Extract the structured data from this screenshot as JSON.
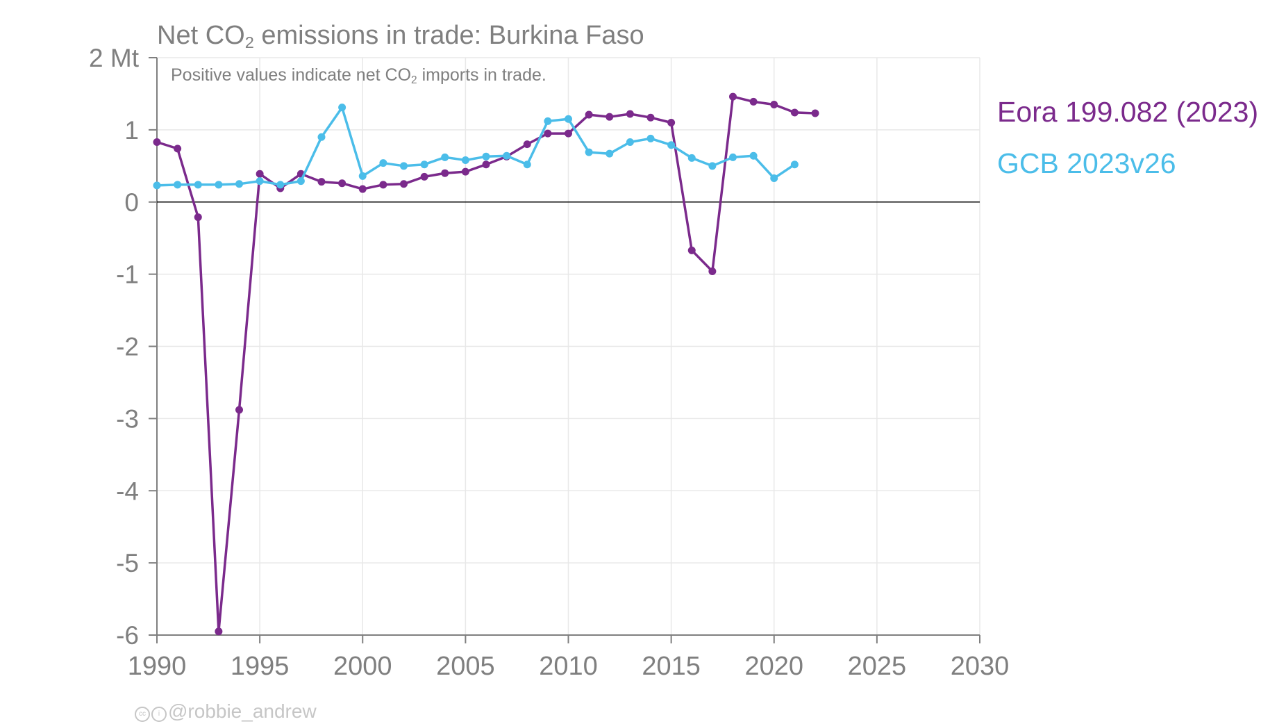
{
  "chart_data": {
    "type": "line",
    "title": {
      "prefix": "Net CO",
      "sub": "2",
      "suffix": " emissions in trade: Burkina Faso"
    },
    "subtitle": {
      "prefix": "Positive values indicate net CO",
      "sub": "2",
      "suffix": " imports in trade."
    },
    "ylabel": "",
    "xlabel": "",
    "y_unit_label": "Mt",
    "ylim": [
      -6,
      2
    ],
    "xlim": [
      1990,
      2030
    ],
    "y_ticks": [
      2,
      1,
      0,
      -1,
      -2,
      -3,
      -4,
      -5,
      -6
    ],
    "y_tick_labels": [
      "2 Mt",
      "1",
      "0",
      "-1",
      "-2",
      "-3",
      "-4",
      "-5",
      "-6"
    ],
    "x_ticks": [
      1990,
      1995,
      2000,
      2005,
      2010,
      2015,
      2020,
      2025,
      2030
    ],
    "x_tick_labels": [
      "1990",
      "1995",
      "2000",
      "2005",
      "2010",
      "2015",
      "2020",
      "2025",
      "2030"
    ],
    "grid": true,
    "legend_placement": "right",
    "series": [
      {
        "name": "Eora 199.082 (2023)",
        "color": "#7b2a8c",
        "x": [
          1990,
          1991,
          1992,
          1993,
          1994,
          1995,
          1996,
          1997,
          1998,
          1999,
          2000,
          2001,
          2002,
          2003,
          2004,
          2005,
          2006,
          2007,
          2008,
          2009,
          2010,
          2011,
          2012,
          2013,
          2014,
          2015,
          2016,
          2017,
          2018,
          2019,
          2020,
          2021,
          2022
        ],
        "values": [
          0.83,
          0.74,
          -0.21,
          -5.95,
          -2.88,
          0.39,
          0.19,
          0.39,
          0.28,
          0.26,
          0.18,
          0.24,
          0.25,
          0.35,
          0.4,
          0.42,
          0.52,
          0.63,
          0.8,
          0.95,
          0.95,
          1.21,
          1.18,
          1.22,
          1.17,
          1.1,
          -0.67,
          -0.96,
          1.46,
          1.39,
          1.35,
          1.24,
          1.23
        ]
      },
      {
        "name": "GCB 2023v26",
        "color": "#4bbde9",
        "x": [
          1990,
          1991,
          1992,
          1993,
          1994,
          1995,
          1996,
          1997,
          1998,
          1999,
          2000,
          2001,
          2002,
          2003,
          2004,
          2005,
          2006,
          2007,
          2008,
          2009,
          2010,
          2011,
          2012,
          2013,
          2014,
          2015,
          2016,
          2017,
          2018,
          2019,
          2020,
          2021
        ],
        "values": [
          0.23,
          0.24,
          0.24,
          0.24,
          0.25,
          0.29,
          0.24,
          0.29,
          0.9,
          1.31,
          0.36,
          0.54,
          0.5,
          0.52,
          0.62,
          0.58,
          0.63,
          0.64,
          0.52,
          1.12,
          1.15,
          0.69,
          0.67,
          0.83,
          0.88,
          0.79,
          0.61,
          0.5,
          0.62,
          0.64,
          0.33,
          0.52
        ]
      }
    ]
  },
  "credit": "@robbie_andrew",
  "colors": {
    "text": "#7f7f7f",
    "grid": "#e8e8e8",
    "axis": "#7f7f7f",
    "zero_line": "#000000"
  }
}
